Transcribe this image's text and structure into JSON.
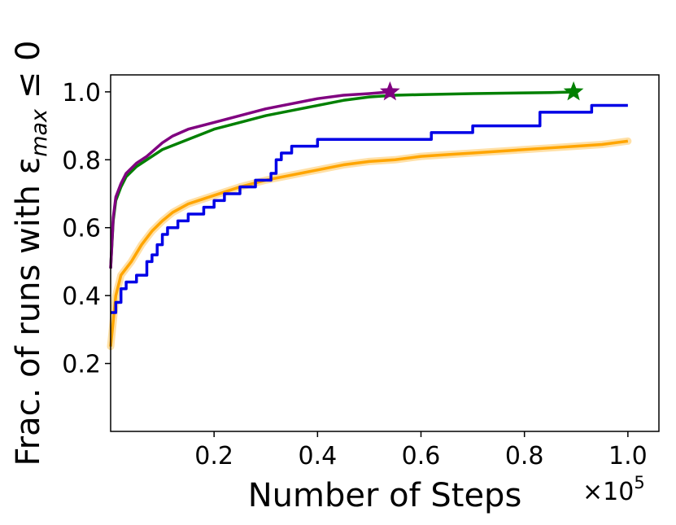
{
  "chart_data": {
    "type": "line",
    "title": "",
    "xlabel": "Number of Steps",
    "ylabel": "Frac. of runs with ε",
    "ylabel_sub": "max",
    "ylabel_suffix": " ≤ 0",
    "x_multiplier_base": "×10",
    "x_multiplier_exp": "5",
    "xlim": [
      0.0,
      1.06
    ],
    "ylim": [
      0.0,
      1.05
    ],
    "x_ticks": [
      0.2,
      0.4,
      0.6,
      0.8,
      1.0
    ],
    "x_tick_labels": [
      "0.2",
      "0.4",
      "0.6",
      "0.8",
      "1.0"
    ],
    "y_ticks": [
      0.2,
      0.4,
      0.6,
      0.8,
      1.0
    ],
    "y_tick_labels": [
      "0.2",
      "0.4",
      "0.6",
      "0.8",
      "1.0"
    ],
    "grid": false,
    "series": [
      {
        "color": "#ffa500",
        "band": true,
        "step": false,
        "x": [
          0.0,
          0.01,
          0.02,
          0.04,
          0.06,
          0.08,
          0.1,
          0.12,
          0.15,
          0.2,
          0.25,
          0.3,
          0.35,
          0.4,
          0.45,
          0.5,
          0.55,
          0.6,
          0.65,
          0.7,
          0.75,
          0.8,
          0.85,
          0.9,
          0.95,
          1.0
        ],
        "y": [
          0.25,
          0.4,
          0.46,
          0.5,
          0.55,
          0.59,
          0.62,
          0.645,
          0.67,
          0.695,
          0.72,
          0.74,
          0.755,
          0.77,
          0.785,
          0.795,
          0.8,
          0.81,
          0.815,
          0.82,
          0.825,
          0.83,
          0.835,
          0.84,
          0.845,
          0.855
        ]
      },
      {
        "color": "#0000e6",
        "band": false,
        "step": true,
        "x": [
          0.0,
          0.01,
          0.02,
          0.03,
          0.05,
          0.07,
          0.08,
          0.09,
          0.1,
          0.11,
          0.13,
          0.15,
          0.18,
          0.2,
          0.22,
          0.25,
          0.28,
          0.31,
          0.32,
          0.33,
          0.35,
          0.4,
          0.5,
          0.62,
          0.7,
          0.83,
          0.93,
          1.0
        ],
        "y": [
          0.35,
          0.38,
          0.42,
          0.44,
          0.46,
          0.5,
          0.52,
          0.55,
          0.58,
          0.6,
          0.62,
          0.64,
          0.66,
          0.68,
          0.7,
          0.72,
          0.74,
          0.76,
          0.8,
          0.82,
          0.84,
          0.86,
          0.86,
          0.88,
          0.9,
          0.94,
          0.96,
          0.96
        ]
      },
      {
        "color": "#008000",
        "band": false,
        "step": false,
        "x": [
          0.0,
          0.005,
          0.01,
          0.02,
          0.03,
          0.05,
          0.07,
          0.1,
          0.15,
          0.2,
          0.25,
          0.3,
          0.35,
          0.4,
          0.45,
          0.5,
          0.55,
          0.6,
          0.7,
          0.8,
          0.85,
          0.9
        ],
        "y": [
          0.48,
          0.62,
          0.68,
          0.72,
          0.75,
          0.78,
          0.8,
          0.83,
          0.86,
          0.89,
          0.91,
          0.93,
          0.945,
          0.96,
          0.975,
          0.985,
          0.99,
          0.992,
          0.995,
          0.997,
          0.998,
          1.0
        ]
      },
      {
        "color": "#800080",
        "band": false,
        "step": false,
        "x": [
          0.0,
          0.005,
          0.01,
          0.02,
          0.03,
          0.05,
          0.07,
          0.1,
          0.12,
          0.15,
          0.2,
          0.25,
          0.3,
          0.35,
          0.4,
          0.45,
          0.5,
          0.54
        ],
        "y": [
          0.48,
          0.63,
          0.69,
          0.73,
          0.76,
          0.79,
          0.81,
          0.85,
          0.87,
          0.89,
          0.91,
          0.93,
          0.95,
          0.965,
          0.98,
          0.99,
          0.995,
          1.0
        ]
      }
    ],
    "markers": [
      {
        "shape": "star",
        "color": "#800080",
        "x": 0.54,
        "y": 1.0
      },
      {
        "shape": "star",
        "color": "#008000",
        "x": 0.895,
        "y": 1.0
      }
    ]
  }
}
